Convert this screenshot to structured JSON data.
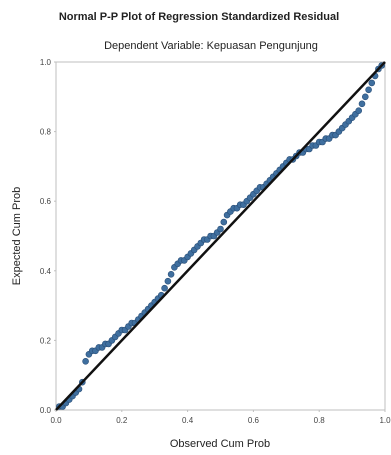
{
  "colors": {
    "background": "#ffffff",
    "plot_frame": "#bfbfbf",
    "point_fill": "#3f6f9f",
    "point_stroke": "#2a4f78",
    "reference_line": "#111111",
    "text": "#222222"
  },
  "chart_data": {
    "type": "scatter",
    "title": "Normal P-P Plot of Regression Standardized Residual",
    "subtitle": "Dependent Variable: Kepuasan Pengunjung",
    "xlabel": "Observed Cum Prob",
    "ylabel": "Expected Cum Prob",
    "xlim": [
      0,
      1
    ],
    "ylim": [
      0,
      1
    ],
    "xticks": [
      "0.0",
      "0.2",
      "0.4",
      "0.6",
      "0.8",
      "1.0"
    ],
    "yticks": [
      "0.0",
      "0.2",
      "0.4",
      "0.6",
      "0.8",
      "1.0"
    ],
    "grid": false,
    "legend": "none",
    "reference_line": {
      "from": [
        0,
        0
      ],
      "to": [
        1,
        1
      ]
    },
    "points": [
      [
        0.01,
        0.01
      ],
      [
        0.02,
        0.01
      ],
      [
        0.03,
        0.02
      ],
      [
        0.04,
        0.03
      ],
      [
        0.05,
        0.04
      ],
      [
        0.06,
        0.05
      ],
      [
        0.07,
        0.06
      ],
      [
        0.08,
        0.08
      ],
      [
        0.09,
        0.14
      ],
      [
        0.1,
        0.16
      ],
      [
        0.11,
        0.17
      ],
      [
        0.12,
        0.17
      ],
      [
        0.13,
        0.18
      ],
      [
        0.14,
        0.18
      ],
      [
        0.15,
        0.19
      ],
      [
        0.16,
        0.19
      ],
      [
        0.17,
        0.2
      ],
      [
        0.18,
        0.21
      ],
      [
        0.19,
        0.22
      ],
      [
        0.2,
        0.23
      ],
      [
        0.21,
        0.23
      ],
      [
        0.22,
        0.24
      ],
      [
        0.23,
        0.25
      ],
      [
        0.24,
        0.25
      ],
      [
        0.25,
        0.26
      ],
      [
        0.26,
        0.27
      ],
      [
        0.27,
        0.28
      ],
      [
        0.28,
        0.29
      ],
      [
        0.29,
        0.3
      ],
      [
        0.3,
        0.31
      ],
      [
        0.31,
        0.32
      ],
      [
        0.32,
        0.33
      ],
      [
        0.33,
        0.35
      ],
      [
        0.34,
        0.37
      ],
      [
        0.35,
        0.39
      ],
      [
        0.36,
        0.41
      ],
      [
        0.37,
        0.42
      ],
      [
        0.38,
        0.43
      ],
      [
        0.39,
        0.43
      ],
      [
        0.4,
        0.44
      ],
      [
        0.41,
        0.45
      ],
      [
        0.42,
        0.46
      ],
      [
        0.43,
        0.47
      ],
      [
        0.44,
        0.48
      ],
      [
        0.45,
        0.49
      ],
      [
        0.46,
        0.49
      ],
      [
        0.47,
        0.5
      ],
      [
        0.48,
        0.5
      ],
      [
        0.49,
        0.51
      ],
      [
        0.5,
        0.52
      ],
      [
        0.51,
        0.54
      ],
      [
        0.52,
        0.56
      ],
      [
        0.53,
        0.57
      ],
      [
        0.54,
        0.58
      ],
      [
        0.55,
        0.58
      ],
      [
        0.56,
        0.59
      ],
      [
        0.57,
        0.59
      ],
      [
        0.58,
        0.6
      ],
      [
        0.59,
        0.61
      ],
      [
        0.6,
        0.62
      ],
      [
        0.61,
        0.63
      ],
      [
        0.62,
        0.64
      ],
      [
        0.63,
        0.64
      ],
      [
        0.64,
        0.65
      ],
      [
        0.65,
        0.66
      ],
      [
        0.66,
        0.67
      ],
      [
        0.67,
        0.68
      ],
      [
        0.68,
        0.69
      ],
      [
        0.69,
        0.7
      ],
      [
        0.7,
        0.71
      ],
      [
        0.71,
        0.72
      ],
      [
        0.72,
        0.72
      ],
      [
        0.73,
        0.73
      ],
      [
        0.74,
        0.74
      ],
      [
        0.75,
        0.74
      ],
      [
        0.76,
        0.75
      ],
      [
        0.77,
        0.75
      ],
      [
        0.78,
        0.76
      ],
      [
        0.79,
        0.76
      ],
      [
        0.8,
        0.77
      ],
      [
        0.81,
        0.77
      ],
      [
        0.82,
        0.78
      ],
      [
        0.83,
        0.78
      ],
      [
        0.84,
        0.79
      ],
      [
        0.85,
        0.79
      ],
      [
        0.86,
        0.8
      ],
      [
        0.87,
        0.81
      ],
      [
        0.88,
        0.82
      ],
      [
        0.89,
        0.83
      ],
      [
        0.9,
        0.84
      ],
      [
        0.91,
        0.85
      ],
      [
        0.92,
        0.86
      ],
      [
        0.93,
        0.88
      ],
      [
        0.94,
        0.9
      ],
      [
        0.95,
        0.92
      ],
      [
        0.96,
        0.94
      ],
      [
        0.97,
        0.96
      ],
      [
        0.98,
        0.98
      ],
      [
        0.99,
        0.99
      ]
    ]
  }
}
